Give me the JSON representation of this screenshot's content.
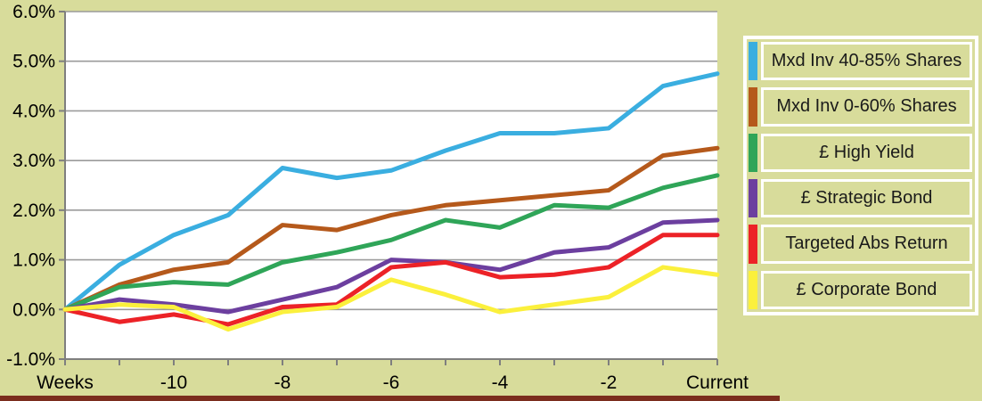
{
  "page": {
    "background_color": "#D8DC9B",
    "footer_bar_color": "#7B2D1E"
  },
  "chart_data": {
    "type": "line",
    "title": "",
    "xlabel": "Weeks",
    "ylabel": "",
    "ylim": [
      -1.0,
      6.0
    ],
    "grid": "horizontal",
    "legend_position": "right",
    "plot_background": "#FFFFFF",
    "gridline_color": "#9B9B9B",
    "axis_color": "#7F7F7F",
    "x_ticks": [
      {
        "index": 0,
        "label": "Weeks"
      },
      {
        "index": 2,
        "label": "-10"
      },
      {
        "index": 4,
        "label": "-8"
      },
      {
        "index": 6,
        "label": "-6"
      },
      {
        "index": 8,
        "label": "-4"
      },
      {
        "index": 10,
        "label": "-2"
      },
      {
        "index": 12,
        "label": "Current"
      }
    ],
    "y_ticks": [
      {
        "value": 6.0,
        "label": "6.0%"
      },
      {
        "value": 5.0,
        "label": "5.0%"
      },
      {
        "value": 4.0,
        "label": "4.0%"
      },
      {
        "value": 3.0,
        "label": "3.0%"
      },
      {
        "value": 2.0,
        "label": "2.0%"
      },
      {
        "value": 1.0,
        "label": "1.0%"
      },
      {
        "value": 0.0,
        "label": "0.0%"
      },
      {
        "value": -1.0,
        "label": "-1.0%"
      }
    ],
    "series": [
      {
        "name": "Mxd Inv 40-85% Shares",
        "color": "#3AAEE0",
        "values": [
          0,
          0.9,
          1.5,
          1.9,
          2.85,
          2.65,
          2.8,
          3.2,
          3.55,
          3.55,
          3.65,
          4.5,
          4.75
        ]
      },
      {
        "name": "Mxd Inv 0-60% Shares",
        "color": "#B5591B",
        "values": [
          0,
          0.5,
          0.8,
          0.95,
          1.7,
          1.6,
          1.9,
          2.1,
          2.2,
          2.3,
          2.4,
          3.1,
          3.25
        ]
      },
      {
        "name": "£ High Yield",
        "color": "#2FA558",
        "values": [
          0,
          0.45,
          0.55,
          0.5,
          0.95,
          1.15,
          1.4,
          1.8,
          1.65,
          2.1,
          2.05,
          2.45,
          2.7
        ]
      },
      {
        "name": "£ Strategic Bond",
        "color": "#6C3F9F",
        "values": [
          0,
          0.2,
          0.1,
          -0.05,
          0.2,
          0.45,
          1.0,
          0.95,
          0.8,
          1.15,
          1.25,
          1.75,
          1.8
        ]
      },
      {
        "name": "Targeted Abs Return",
        "color": "#EC2227",
        "values": [
          0,
          -0.25,
          -0.1,
          -0.3,
          0.05,
          0.1,
          0.85,
          0.95,
          0.65,
          0.7,
          0.85,
          1.5,
          1.5
        ]
      },
      {
        "name": "£ Corporate Bond",
        "color": "#FBF03C",
        "values": [
          0,
          0.1,
          0.05,
          -0.4,
          -0.05,
          0.05,
          0.6,
          0.3,
          -0.05,
          0.1,
          0.25,
          0.85,
          0.7
        ]
      }
    ]
  }
}
